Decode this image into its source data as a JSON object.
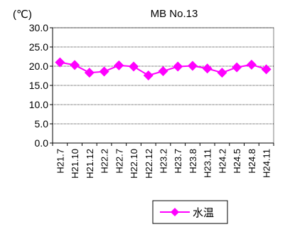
{
  "chart_data": {
    "type": "line",
    "title": "MB   No.13",
    "unit_label": "(℃)",
    "xlabel": "",
    "ylabel": "",
    "categories": [
      "H21.7",
      "H21.10",
      "H21.12",
      "H22.2",
      "H22.7",
      "H22.10",
      "H22.12",
      "H23.2",
      "H23.7",
      "H23.8",
      "H23.11",
      "H24.2",
      "H24.5",
      "H24.8",
      "H24.11"
    ],
    "series": [
      {
        "name": "水温",
        "values": [
          21.0,
          20.3,
          18.3,
          18.6,
          20.2,
          19.9,
          17.6,
          18.7,
          19.9,
          20.1,
          19.4,
          18.3,
          19.7,
          20.4,
          19.2
        ],
        "color": "#ff00ff"
      }
    ],
    "ylim": [
      0,
      30
    ],
    "yticks": [
      "0.0",
      "5.0",
      "10.0",
      "15.0",
      "20.0",
      "25.0",
      "30.0"
    ],
    "grid": true,
    "legend": "bottom-center",
    "marker": "diamond"
  }
}
